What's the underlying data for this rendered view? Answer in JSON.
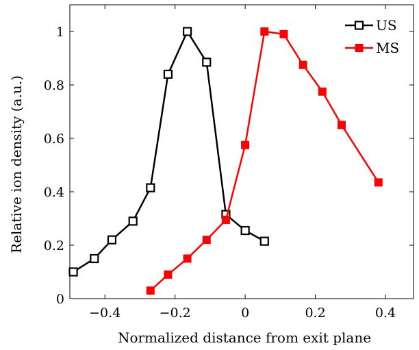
{
  "chart_data": {
    "type": "line",
    "title": "",
    "xlabel": "Normalized distance from exit plane",
    "ylabel": "Relative ion density (a.u.)",
    "xlim": [
      -0.5,
      0.48
    ],
    "ylim": [
      0,
      1.1
    ],
    "xticks": [
      -0.4,
      -0.2,
      0,
      0.2,
      0.4
    ],
    "xtick_labels": [
      "−0.4",
      "−0.2",
      "0",
      "0.2",
      "0.4"
    ],
    "yticks": [
      0,
      0.2,
      0.4,
      0.6,
      0.8,
      1
    ],
    "ytick_labels": [
      "0",
      "0.2",
      "0.4",
      "0.6",
      "0.8",
      "1"
    ],
    "grid": false,
    "legend_position": "top-right",
    "series": [
      {
        "name": "US",
        "color": "#000000",
        "marker": "open-square",
        "x": [
          -0.49,
          -0.43,
          -0.38,
          -0.32,
          -0.27,
          -0.22,
          -0.165,
          -0.11,
          -0.055,
          0.0,
          0.055
        ],
        "y": [
          0.1,
          0.15,
          0.22,
          0.29,
          0.415,
          0.84,
          1.0,
          0.885,
          0.315,
          0.255,
          0.215
        ]
      },
      {
        "name": "MS",
        "color": "#ff0000",
        "marker": "filled-square",
        "x": [
          -0.27,
          -0.22,
          -0.165,
          -0.11,
          -0.055,
          0.0,
          0.055,
          0.11,
          0.165,
          0.22,
          0.275,
          0.38
        ],
        "y": [
          0.03,
          0.09,
          0.15,
          0.22,
          0.295,
          0.575,
          1.0,
          0.99,
          0.875,
          0.775,
          0.65,
          0.435
        ]
      }
    ]
  }
}
